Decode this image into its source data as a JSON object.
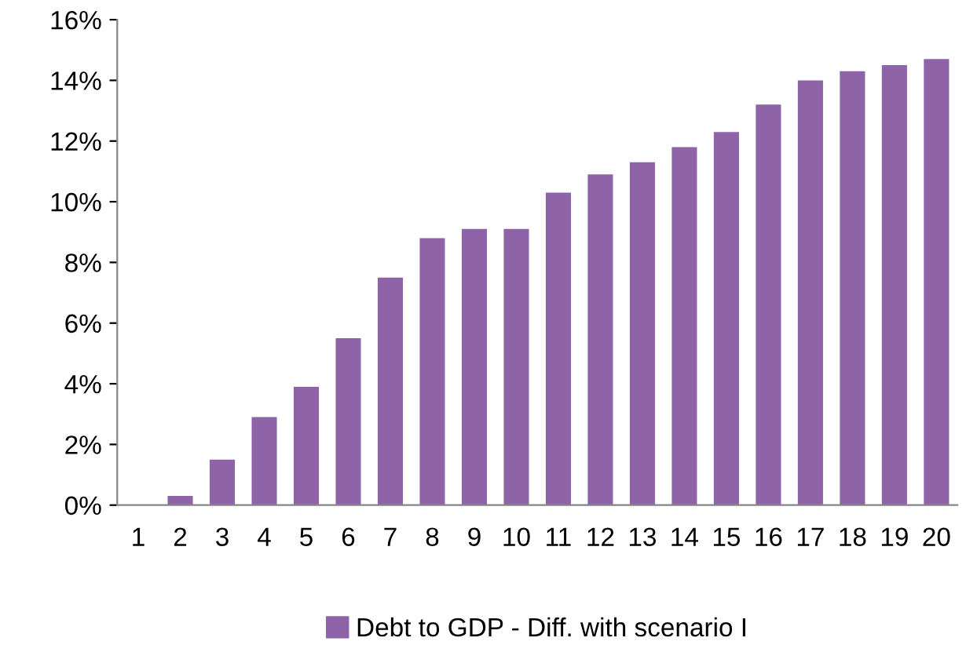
{
  "chart_data": {
    "type": "bar",
    "categories": [
      "1",
      "2",
      "3",
      "4",
      "5",
      "6",
      "7",
      "8",
      "9",
      "10",
      "11",
      "12",
      "13",
      "14",
      "15",
      "16",
      "17",
      "18",
      "19",
      "20"
    ],
    "series": [
      {
        "name": "Debt to GDP - Diff. with scenario I",
        "color": "#8e63a8",
        "values": [
          0,
          0.3,
          1.5,
          2.9,
          3.9,
          5.5,
          7.5,
          8.8,
          9.1,
          9.1,
          10.3,
          10.9,
          11.3,
          11.8,
          12.3,
          13.2,
          14.0,
          14.3,
          14.5,
          14.7
        ]
      }
    ],
    "ylim": [
      0,
      16
    ],
    "yticks": [
      {
        "value": 0,
        "label": "0%"
      },
      {
        "value": 2,
        "label": "2%"
      },
      {
        "value": 4,
        "label": "4%"
      },
      {
        "value": 6,
        "label": "6%"
      },
      {
        "value": 8,
        "label": "8%"
      },
      {
        "value": 10,
        "label": "10%"
      },
      {
        "value": 12,
        "label": "12%"
      },
      {
        "value": 14,
        "label": "14%"
      },
      {
        "value": 16,
        "label": "16%"
      }
    ],
    "grid": false,
    "legend": "bottom"
  }
}
